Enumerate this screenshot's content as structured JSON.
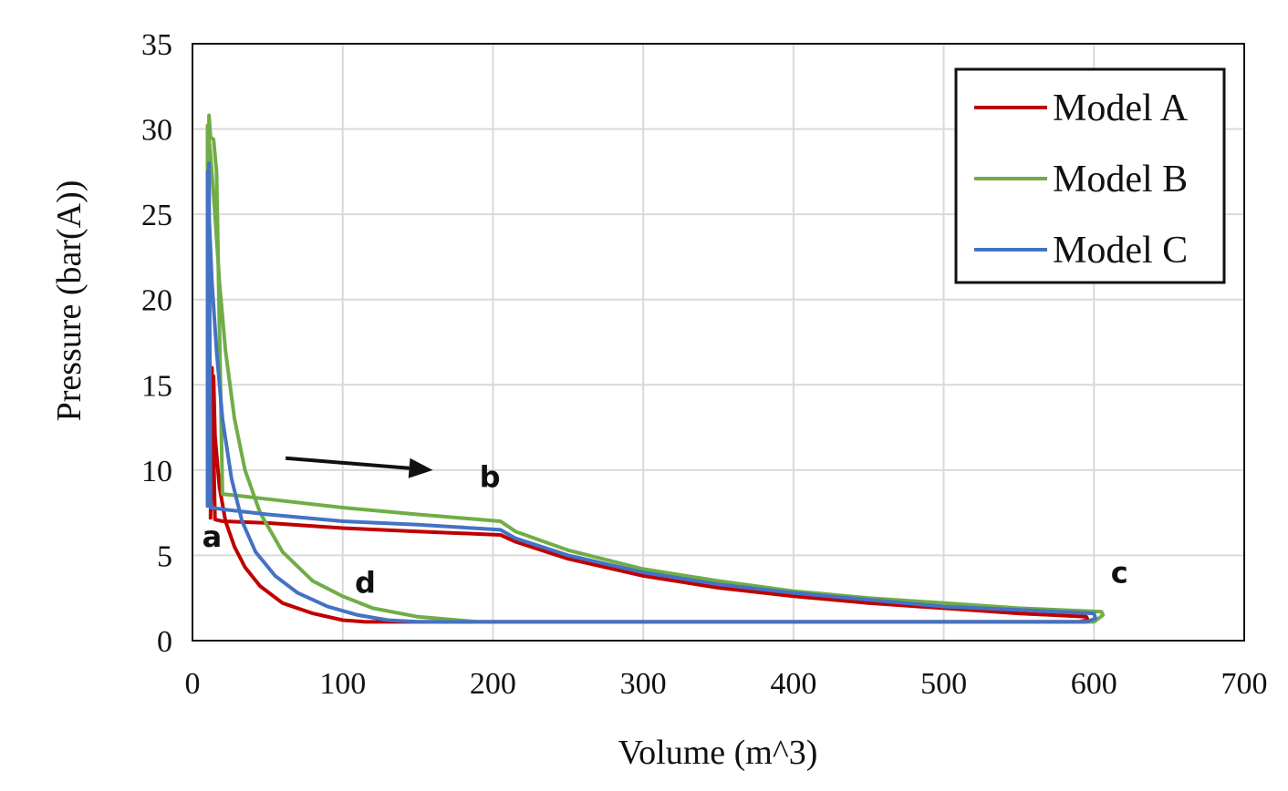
{
  "chart_data": {
    "type": "line",
    "title": "",
    "xlabel": "Volume (m^3)",
    "ylabel": "Pressure (bar(A))",
    "xlim": [
      0,
      700
    ],
    "ylim": [
      0,
      35
    ],
    "xticks": [
      "0",
      "100",
      "200",
      "300",
      "400",
      "500",
      "600",
      "700"
    ],
    "yticks": [
      "0",
      "5",
      "10",
      "15",
      "20",
      "25",
      "30",
      "35"
    ],
    "grid": true,
    "legend_position": "top-right",
    "series": [
      {
        "name": "Model A",
        "color": "#c00000",
        "x": [
          12,
          13,
          15,
          20,
          50,
          100,
          150,
          205,
          215,
          250,
          300,
          350,
          400,
          450,
          500,
          550,
          595,
          596,
          590,
          500,
          300,
          200,
          115,
          100,
          80,
          60,
          45,
          35,
          28,
          22,
          18,
          15,
          14
        ],
        "y": [
          7.2,
          16,
          7.1,
          7.0,
          6.9,
          6.6,
          6.4,
          6.2,
          5.8,
          4.8,
          3.8,
          3.1,
          2.6,
          2.2,
          1.9,
          1.6,
          1.4,
          1.2,
          1.1,
          1.1,
          1.1,
          1.1,
          1.1,
          1.2,
          1.6,
          2.2,
          3.2,
          4.3,
          5.5,
          7.0,
          9.0,
          12.0,
          15.5
        ]
      },
      {
        "name": "Model B",
        "color": "#70ad47",
        "x": [
          10,
          11,
          12,
          14,
          16,
          20,
          30,
          50,
          100,
          150,
          205,
          215,
          250,
          300,
          350,
          400,
          450,
          500,
          550,
          605,
          606,
          600,
          500,
          300,
          190,
          150,
          120,
          100,
          80,
          60,
          45,
          35,
          28,
          22,
          18,
          15,
          12,
          10
        ],
        "y": [
          8.7,
          30.8,
          29.5,
          29.4,
          27.5,
          8.6,
          8.5,
          8.3,
          7.8,
          7.4,
          7.0,
          6.4,
          5.3,
          4.2,
          3.5,
          2.9,
          2.5,
          2.2,
          1.9,
          1.7,
          1.5,
          1.1,
          1.1,
          1.1,
          1.1,
          1.4,
          1.9,
          2.6,
          3.5,
          5.2,
          7.5,
          10.0,
          13.0,
          17.0,
          21.0,
          25.0,
          28.5,
          30.2
        ]
      },
      {
        "name": "Model C",
        "color": "#4472c4",
        "x": [
          10,
          11,
          12,
          20,
          50,
          100,
          150,
          205,
          215,
          250,
          300,
          350,
          400,
          450,
          500,
          550,
          600,
          601,
          595,
          500,
          300,
          150,
          130,
          110,
          90,
          70,
          55,
          42,
          33,
          26,
          20,
          16,
          13,
          11,
          10
        ],
        "y": [
          7.9,
          28,
          7.8,
          7.7,
          7.4,
          7.0,
          6.8,
          6.5,
          6.0,
          5.0,
          4.0,
          3.3,
          2.8,
          2.4,
          2.0,
          1.8,
          1.6,
          1.3,
          1.1,
          1.1,
          1.1,
          1.1,
          1.2,
          1.5,
          2.0,
          2.8,
          3.8,
          5.2,
          7.0,
          9.5,
          13.0,
          17.0,
          21.0,
          25.0,
          27.5
        ]
      }
    ],
    "annotations": [
      {
        "label": "a",
        "x": 13,
        "y": 5.5
      },
      {
        "label": "b",
        "x": 198,
        "y": 9.0
      },
      {
        "label": "c",
        "x": 617,
        "y": 3.4
      },
      {
        "label": "d",
        "x": 115,
        "y": 2.8
      }
    ],
    "arrow": {
      "from": [
        62,
        10.7
      ],
      "to": [
        160,
        10.0
      ]
    }
  }
}
